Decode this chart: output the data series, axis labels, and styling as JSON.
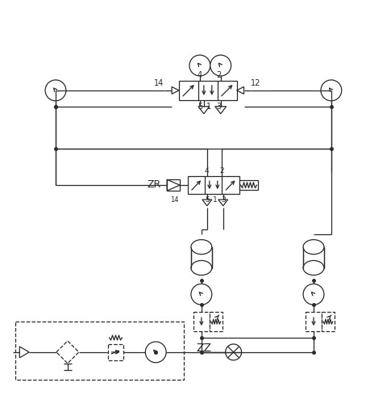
{
  "fig_width": 4.54,
  "fig_height": 5.06,
  "dpi": 100,
  "bg_color": "#ffffff",
  "line_color": "#2a2a2a",
  "lw": 0.9
}
